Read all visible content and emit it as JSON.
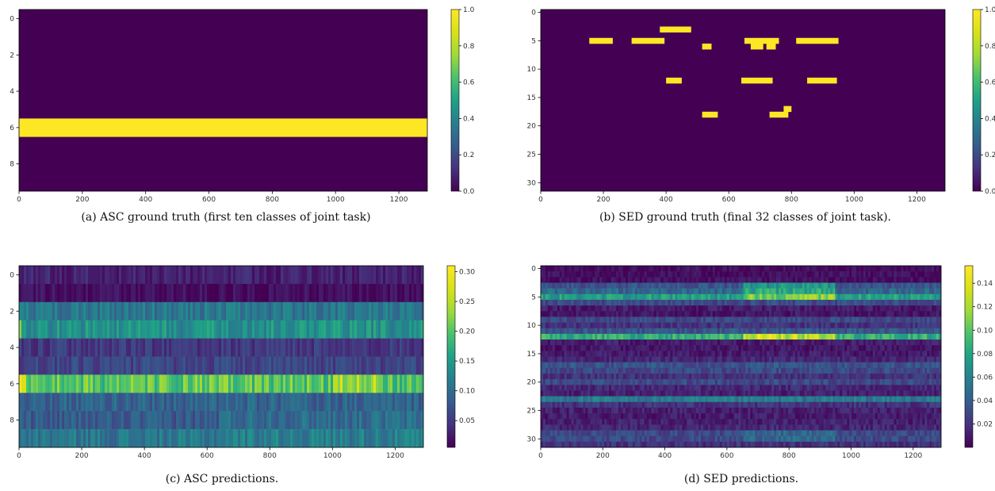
{
  "chart_data": [
    {
      "id": "a",
      "type": "heatmap",
      "caption": "(a)  ASC ground truth (first ten classes of joint task)",
      "x_max": 1290,
      "y_rows": 10,
      "x_ticks": [
        "0",
        "200",
        "400",
        "600",
        "800",
        "1000",
        "1200"
      ],
      "y_ticks": [
        {
          "value": 0,
          "label": "0"
        },
        {
          "value": 2,
          "label": "2"
        },
        {
          "value": 4,
          "label": "4"
        },
        {
          "value": 6,
          "label": "6"
        },
        {
          "value": 8,
          "label": "8"
        }
      ],
      "colorbar": {
        "min": 0.0,
        "max": 1.0,
        "ticks": [
          {
            "value": 0.0,
            "label": "0.0"
          },
          {
            "value": 0.2,
            "label": "0.2"
          },
          {
            "value": 0.4,
            "label": "0.4"
          },
          {
            "value": 0.6,
            "label": "0.6"
          },
          {
            "value": 0.8,
            "label": "0.8"
          },
          {
            "value": 1.0,
            "label": "1.0"
          }
        ]
      },
      "background_value": 0.0,
      "segments": [
        {
          "row": 6,
          "start": 0,
          "end": 1290,
          "value": 1.0
        }
      ]
    },
    {
      "id": "b",
      "type": "heatmap",
      "caption": "(b)  SED ground truth (final 32 classes of joint task).",
      "x_max": 1290,
      "y_rows": 32,
      "x_ticks": [
        "0",
        "200",
        "400",
        "600",
        "800",
        "1000",
        "1200"
      ],
      "y_ticks": [
        {
          "value": 0,
          "label": "0"
        },
        {
          "value": 5,
          "label": "5"
        },
        {
          "value": 10,
          "label": "10"
        },
        {
          "value": 15,
          "label": "15"
        },
        {
          "value": 20,
          "label": "20"
        },
        {
          "value": 25,
          "label": "25"
        },
        {
          "value": 30,
          "label": "30"
        }
      ],
      "colorbar": {
        "min": 0.0,
        "max": 1.0,
        "ticks": [
          {
            "value": 0.0,
            "label": "0.0"
          },
          {
            "value": 0.2,
            "label": "0.2"
          },
          {
            "value": 0.4,
            "label": "0.4"
          },
          {
            "value": 0.6,
            "label": "0.6"
          },
          {
            "value": 0.8,
            "label": "0.8"
          },
          {
            "value": 1.0,
            "label": "1.0"
          }
        ]
      },
      "background_value": 0.0,
      "segments": [
        {
          "row": 3,
          "start": 380,
          "end": 480,
          "value": 1.0
        },
        {
          "row": 5,
          "start": 155,
          "end": 230,
          "value": 1.0
        },
        {
          "row": 5,
          "start": 290,
          "end": 395,
          "value": 1.0
        },
        {
          "row": 5,
          "start": 650,
          "end": 760,
          "value": 1.0
        },
        {
          "row": 5,
          "start": 815,
          "end": 950,
          "value": 1.0
        },
        {
          "row": 6,
          "start": 515,
          "end": 545,
          "value": 1.0
        },
        {
          "row": 6,
          "start": 670,
          "end": 710,
          "value": 1.0
        },
        {
          "row": 6,
          "start": 720,
          "end": 750,
          "value": 1.0
        },
        {
          "row": 12,
          "start": 400,
          "end": 450,
          "value": 1.0
        },
        {
          "row": 12,
          "start": 640,
          "end": 740,
          "value": 1.0
        },
        {
          "row": 12,
          "start": 850,
          "end": 945,
          "value": 1.0
        },
        {
          "row": 17,
          "start": 775,
          "end": 800,
          "value": 1.0
        },
        {
          "row": 18,
          "start": 515,
          "end": 565,
          "value": 1.0
        },
        {
          "row": 18,
          "start": 730,
          "end": 790,
          "value": 1.0
        }
      ]
    },
    {
      "id": "c",
      "type": "heatmap",
      "caption": "(c)  ASC predictions.",
      "x_max": 1290,
      "y_rows": 10,
      "x_ticks": [
        "0",
        "200",
        "400",
        "600",
        "800",
        "1000",
        "1200"
      ],
      "y_ticks": [
        {
          "value": 0,
          "label": "0"
        },
        {
          "value": 2,
          "label": "2"
        },
        {
          "value": 4,
          "label": "4"
        },
        {
          "value": 6,
          "label": "6"
        },
        {
          "value": 8,
          "label": "8"
        }
      ],
      "colorbar": {
        "min": 0.005,
        "max": 0.31,
        "ticks": [
          {
            "value": 0.05,
            "label": "0.05"
          },
          {
            "value": 0.1,
            "label": "0.10"
          },
          {
            "value": 0.15,
            "label": "0.15"
          },
          {
            "value": 0.2,
            "label": "0.20"
          },
          {
            "value": 0.25,
            "label": "0.25"
          },
          {
            "value": 0.3,
            "label": "0.30"
          }
        ]
      },
      "row_levels": [
        0.03,
        0.015,
        0.11,
        0.14,
        0.05,
        0.06,
        0.2,
        0.09,
        0.08,
        0.11
      ],
      "row_patterns": [
        {
          "row": 6,
          "start": 0,
          "end": 20,
          "value": 0.3
        },
        {
          "row": 6,
          "start": 1000,
          "end": 1150,
          "value": 0.24
        },
        {
          "row": 3,
          "start": 0,
          "end": 10,
          "value": 0.22
        },
        {
          "row": 9,
          "start": 640,
          "end": 1290,
          "value": 0.12
        },
        {
          "row": 8,
          "start": 640,
          "end": 1290,
          "value": 0.1
        }
      ],
      "noise": 0.035
    },
    {
      "id": "d",
      "type": "heatmap",
      "caption": "(d)  SED predictions.",
      "x_max": 1290,
      "y_rows": 32,
      "x_ticks": [
        "0",
        "200",
        "400",
        "600",
        "800",
        "1000",
        "1200"
      ],
      "y_ticks": [
        {
          "value": 0,
          "label": "0"
        },
        {
          "value": 5,
          "label": "5"
        },
        {
          "value": 10,
          "label": "10"
        },
        {
          "value": 15,
          "label": "15"
        },
        {
          "value": 20,
          "label": "20"
        },
        {
          "value": 25,
          "label": "25"
        },
        {
          "value": 30,
          "label": "30"
        }
      ],
      "colorbar": {
        "min": 0.0,
        "max": 0.155,
        "ticks": [
          {
            "value": 0.02,
            "label": "0.02"
          },
          {
            "value": 0.04,
            "label": "0.04"
          },
          {
            "value": 0.06,
            "label": "0.06"
          },
          {
            "value": 0.08,
            "label": "0.08"
          },
          {
            "value": 0.1,
            "label": "0.10"
          },
          {
            "value": 0.12,
            "label": "0.12"
          },
          {
            "value": 0.14,
            "label": "0.14"
          }
        ]
      },
      "row_levels": [
        0.005,
        0.005,
        0.006,
        0.035,
        0.045,
        0.075,
        0.03,
        0.01,
        0.008,
        0.03,
        0.02,
        0.035,
        0.085,
        0.01,
        0.008,
        0.01,
        0.015,
        0.035,
        0.03,
        0.02,
        0.03,
        0.015,
        0.012,
        0.055,
        0.02,
        0.012,
        0.01,
        0.012,
        0.015,
        0.03,
        0.03,
        0.02
      ],
      "row_patterns": [
        {
          "row": 12,
          "start": 650,
          "end": 950,
          "value": 0.125
        },
        {
          "row": 12,
          "start": 700,
          "end": 760,
          "value": 0.15
        },
        {
          "row": 5,
          "start": 650,
          "end": 950,
          "value": 0.11
        },
        {
          "row": 3,
          "start": 650,
          "end": 950,
          "value": 0.07
        },
        {
          "row": 4,
          "start": 650,
          "end": 950,
          "value": 0.08
        },
        {
          "row": 29,
          "start": 650,
          "end": 950,
          "value": 0.045
        },
        {
          "row": 30,
          "start": 650,
          "end": 950,
          "value": 0.045
        }
      ],
      "noise": 0.018
    }
  ]
}
